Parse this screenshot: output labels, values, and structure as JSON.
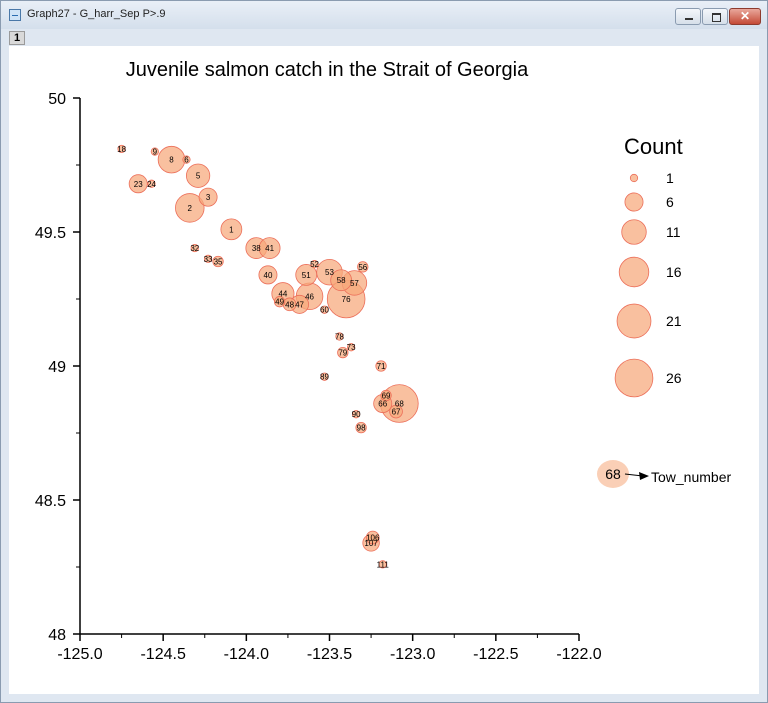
{
  "window": {
    "title": "Graph27 - G_harr_Sep P>.9",
    "layer_tab": "1",
    "close_glyph": "✕"
  },
  "colors": {
    "bubble_fill": "#f6a87a",
    "bubble_stroke": "#ec6f5a",
    "axis": "#000000"
  },
  "chart_data": {
    "type": "scatter",
    "title": "Juvenile salmon catch in the Strait of Georgia",
    "xlabel": "",
    "ylabel": "",
    "xlim": [
      -125.0,
      -122.0
    ],
    "ylim": [
      48.0,
      50.0
    ],
    "xticks": [
      "-125.0",
      "-124.5",
      "-124.0",
      "-123.5",
      "-123.0",
      "-122.5",
      "-122.0"
    ],
    "yticks": [
      "48",
      "48.5",
      "49",
      "49.5",
      "50"
    ],
    "grid": false,
    "bubble_size_variable": "Count",
    "label_variable": "Tow_number",
    "points": [
      {
        "tow": "18",
        "lon": -124.75,
        "lat": 49.81,
        "count": 1
      },
      {
        "tow": "9",
        "lon": -124.55,
        "lat": 49.8,
        "count": 1
      },
      {
        "tow": "8",
        "lon": -124.45,
        "lat": 49.77,
        "count": 13
      },
      {
        "tow": "6",
        "lon": -124.36,
        "lat": 49.77,
        "count": 1
      },
      {
        "tow": "5",
        "lon": -124.29,
        "lat": 49.71,
        "count": 10
      },
      {
        "tow": "23",
        "lon": -124.65,
        "lat": 49.68,
        "count": 6
      },
      {
        "tow": "24",
        "lon": -124.57,
        "lat": 49.68,
        "count": 1
      },
      {
        "tow": "3",
        "lon": -124.23,
        "lat": 49.63,
        "count": 6
      },
      {
        "tow": "2",
        "lon": -124.34,
        "lat": 49.59,
        "count": 15
      },
      {
        "tow": "1",
        "lon": -124.09,
        "lat": 49.51,
        "count": 8
      },
      {
        "tow": "38",
        "lon": -123.94,
        "lat": 49.44,
        "count": 8
      },
      {
        "tow": "41",
        "lon": -123.86,
        "lat": 49.44,
        "count": 8
      },
      {
        "tow": "32",
        "lon": -124.31,
        "lat": 49.44,
        "count": 1
      },
      {
        "tow": "33",
        "lon": -124.23,
        "lat": 49.4,
        "count": 1
      },
      {
        "tow": "35",
        "lon": -124.17,
        "lat": 49.39,
        "count": 2
      },
      {
        "tow": "52",
        "lon": -123.59,
        "lat": 49.38,
        "count": 1
      },
      {
        "tow": "53",
        "lon": -123.5,
        "lat": 49.35,
        "count": 12
      },
      {
        "tow": "56",
        "lon": -123.3,
        "lat": 49.37,
        "count": 2
      },
      {
        "tow": "51",
        "lon": -123.64,
        "lat": 49.34,
        "count": 8
      },
      {
        "tow": "40",
        "lon": -123.87,
        "lat": 49.34,
        "count": 6
      },
      {
        "tow": "58",
        "lon": -123.43,
        "lat": 49.32,
        "count": 8
      },
      {
        "tow": "57",
        "lon": -123.35,
        "lat": 49.31,
        "count": 11
      },
      {
        "tow": "44",
        "lon": -123.78,
        "lat": 49.27,
        "count": 9
      },
      {
        "tow": "46",
        "lon": -123.62,
        "lat": 49.26,
        "count": 13
      },
      {
        "tow": "76",
        "lon": -123.4,
        "lat": 49.25,
        "count": 26
      },
      {
        "tow": "49",
        "lon": -123.8,
        "lat": 49.24,
        "count": 2
      },
      {
        "tow": "48",
        "lon": -123.74,
        "lat": 49.23,
        "count": 3
      },
      {
        "tow": "47",
        "lon": -123.68,
        "lat": 49.23,
        "count": 6
      },
      {
        "tow": "60",
        "lon": -123.53,
        "lat": 49.21,
        "count": 1
      },
      {
        "tow": "78",
        "lon": -123.44,
        "lat": 49.11,
        "count": 1
      },
      {
        "tow": "73",
        "lon": -123.37,
        "lat": 49.07,
        "count": 1
      },
      {
        "tow": "79",
        "lon": -123.42,
        "lat": 49.05,
        "count": 2
      },
      {
        "tow": "71",
        "lon": -123.19,
        "lat": 49.0,
        "count": 2
      },
      {
        "tow": "89",
        "lon": -123.53,
        "lat": 48.96,
        "count": 1
      },
      {
        "tow": "69",
        "lon": -123.16,
        "lat": 48.89,
        "count": 2
      },
      {
        "tow": "66",
        "lon": -123.18,
        "lat": 48.86,
        "count": 6
      },
      {
        "tow": "68",
        "lon": -123.08,
        "lat": 48.86,
        "count": 26
      },
      {
        "tow": "67",
        "lon": -123.1,
        "lat": 48.83,
        "count": 3
      },
      {
        "tow": "90",
        "lon": -123.34,
        "lat": 48.82,
        "count": 1
      },
      {
        "tow": "98",
        "lon": -123.31,
        "lat": 48.77,
        "count": 2
      },
      {
        "tow": "106",
        "lon": -123.24,
        "lat": 48.36,
        "count": 3
      },
      {
        "tow": "107",
        "lon": -123.25,
        "lat": 48.34,
        "count": 5
      },
      {
        "tow": "111",
        "lon": -123.18,
        "lat": 48.26,
        "count": 1
      }
    ]
  },
  "legend": {
    "title": "Count",
    "placement": "right",
    "entries": [
      {
        "label": "1",
        "count": 1
      },
      {
        "label": "6",
        "count": 6
      },
      {
        "label": "11",
        "count": 11
      },
      {
        "label": "16",
        "count": 16
      },
      {
        "label": "21",
        "count": 21
      },
      {
        "label": "26",
        "count": 26
      }
    ],
    "label_key": {
      "sample": "68",
      "text": "Tow_number"
    }
  }
}
